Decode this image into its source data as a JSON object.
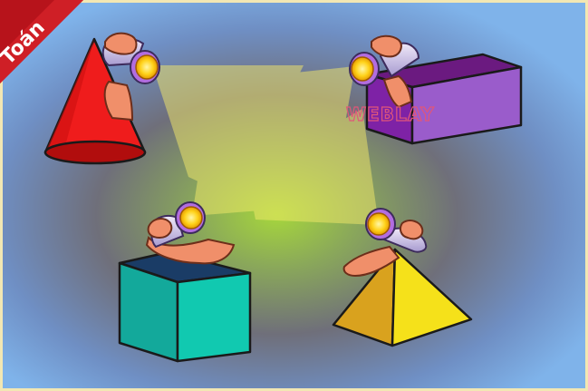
{
  "corner_ribbon": {
    "label": "Toán",
    "color": "#b7131b"
  },
  "watermark": {
    "label": "WEBLAY",
    "color": "#e0567a"
  },
  "background": {
    "glow": "#9fd33a",
    "outer": "#7fb3ea",
    "frame": "#f2e7b3"
  },
  "light_beam": {
    "color": "#f4ea6a"
  },
  "shapes": [
    {
      "name": "cone",
      "color": "#ef1c1c"
    },
    {
      "name": "rectangular-prism",
      "color": "#9c4fc9"
    },
    {
      "name": "cube",
      "color": "#13a99b"
    },
    {
      "name": "pyramid",
      "color": "#f5e11a"
    }
  ]
}
